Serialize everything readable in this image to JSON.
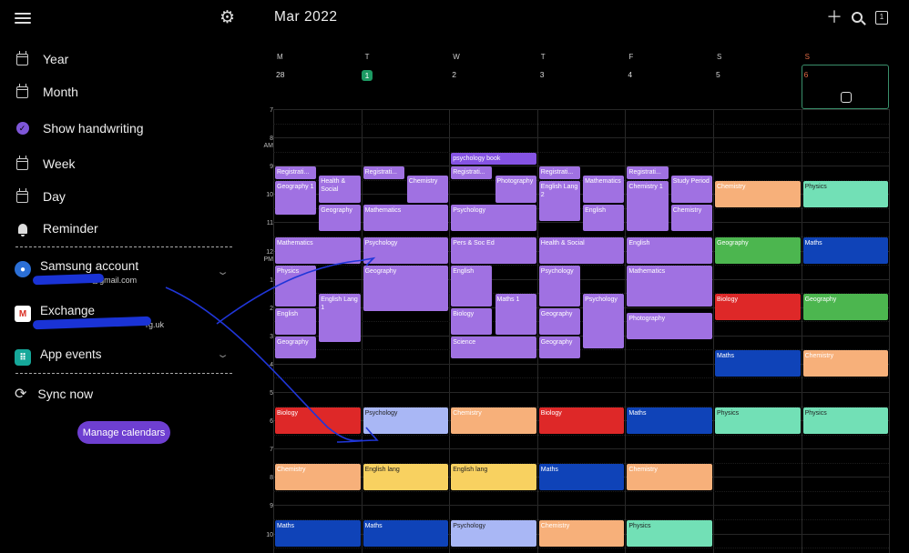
{
  "drawer": {
    "nav": [
      {
        "label": "Year"
      },
      {
        "label": "Month"
      },
      {
        "label": "Show handwriting"
      },
      {
        "label": "Week"
      },
      {
        "label": "Day"
      },
      {
        "label": "Reminder"
      }
    ],
    "accounts": [
      {
        "name": "Samsung account",
        "sub": "@gmail.com"
      },
      {
        "name": "Exchange",
        "sub": "rg.uk"
      },
      {
        "name": "App events",
        "sub": ""
      }
    ],
    "sync_label": "Sync now",
    "manage_label": "Manage calendars"
  },
  "header": {
    "title": "Mar 2022",
    "today_icon_text": "1"
  },
  "days": [
    {
      "letter": "M",
      "num": "28"
    },
    {
      "letter": "T",
      "num": "1"
    },
    {
      "letter": "W",
      "num": "2"
    },
    {
      "letter": "T",
      "num": "3"
    },
    {
      "letter": "F",
      "num": "4"
    },
    {
      "letter": "S",
      "num": "5"
    },
    {
      "letter": "S",
      "num": "6"
    }
  ],
  "hours": [
    {
      "h": "7",
      "sub": ""
    },
    {
      "h": "8",
      "sub": "AM"
    },
    {
      "h": "9",
      "sub": ""
    },
    {
      "h": "10",
      "sub": ""
    },
    {
      "h": "11",
      "sub": ""
    },
    {
      "h": "12",
      "sub": "PM"
    },
    {
      "h": "1",
      "sub": ""
    },
    {
      "h": "2",
      "sub": ""
    },
    {
      "h": "3",
      "sub": ""
    },
    {
      "h": "4",
      "sub": ""
    },
    {
      "h": "5",
      "sub": ""
    },
    {
      "h": "6",
      "sub": ""
    },
    {
      "h": "7",
      "sub": ""
    },
    {
      "h": "8",
      "sub": ""
    },
    {
      "h": "9",
      "sub": ""
    },
    {
      "h": "10",
      "sub": ""
    }
  ],
  "events": [
    {
      "d": 2,
      "s": 8.5,
      "e": 9.0,
      "col": "c-pbtn",
      "t": "psychology book"
    },
    {
      "d": 0,
      "s": 9.0,
      "e": 9.5,
      "w": 0.5,
      "o": 0,
      "col": "c-purple",
      "t": "Registrati..."
    },
    {
      "d": 0,
      "s": 9.5,
      "e": 10.75,
      "w": 0.5,
      "o": 0,
      "col": "c-purple",
      "t": "Geography 1"
    },
    {
      "d": 0,
      "s": 9.33,
      "e": 10.33,
      "w": 0.5,
      "o": 0.5,
      "col": "c-purple",
      "t": "Health & Social"
    },
    {
      "d": 0,
      "s": 10.33,
      "e": 11.33,
      "w": 0.5,
      "o": 0.5,
      "col": "c-purple",
      "t": "Geography"
    },
    {
      "d": 0,
      "s": 11.5,
      "e": 12.5,
      "col": "c-purple",
      "t": "Mathematics"
    },
    {
      "d": 0,
      "s": 12.5,
      "e": 14.0,
      "w": 0.5,
      "o": 0,
      "col": "c-purple",
      "t": "Physics"
    },
    {
      "d": 0,
      "s": 13.5,
      "e": 15.25,
      "w": 0.5,
      "o": 0.5,
      "col": "c-purple",
      "t": "English Lang 1"
    },
    {
      "d": 0,
      "s": 14.0,
      "e": 15.0,
      "w": 0.5,
      "o": 0,
      "col": "c-purple",
      "t": "English"
    },
    {
      "d": 0,
      "s": 15.0,
      "e": 15.83,
      "w": 0.5,
      "o": 0,
      "col": "c-purple",
      "t": "Geography"
    },
    {
      "d": 0,
      "s": 17.5,
      "e": 18.5,
      "col": "c-red",
      "t": "Biology"
    },
    {
      "d": 0,
      "s": 19.5,
      "e": 20.5,
      "col": "c-orange",
      "t": "Chemistry"
    },
    {
      "d": 0,
      "s": 21.5,
      "e": 22.5,
      "col": "c-blue",
      "t": "Maths"
    },
    {
      "d": 1,
      "s": 9.0,
      "e": 9.5,
      "w": 0.5,
      "o": 0,
      "col": "c-purple",
      "t": "Registrati..."
    },
    {
      "d": 1,
      "s": 9.33,
      "e": 10.33,
      "w": 0.5,
      "o": 0.5,
      "col": "c-purple",
      "t": "Chemistry"
    },
    {
      "d": 1,
      "s": 10.33,
      "e": 11.33,
      "col": "c-purple",
      "t": "Mathematics"
    },
    {
      "d": 1,
      "s": 11.5,
      "e": 12.5,
      "col": "c-purple",
      "t": "Psychology"
    },
    {
      "d": 1,
      "s": 12.5,
      "e": 14.17,
      "col": "c-purple",
      "t": "Geography"
    },
    {
      "d": 1,
      "s": 17.5,
      "e": 18.5,
      "col": "c-lav",
      "t": "Psychology"
    },
    {
      "d": 1,
      "s": 19.5,
      "e": 20.5,
      "col": "c-yellow",
      "t": "English lang"
    },
    {
      "d": 1,
      "s": 21.5,
      "e": 22.5,
      "col": "c-blue",
      "t": "Maths"
    },
    {
      "d": 2,
      "s": 9.0,
      "e": 9.5,
      "w": 0.5,
      "o": 0,
      "col": "c-purple",
      "t": "Registrati..."
    },
    {
      "d": 2,
      "s": 9.33,
      "e": 10.33,
      "w": 0.5,
      "o": 0.5,
      "col": "c-purple",
      "t": "Photography"
    },
    {
      "d": 2,
      "s": 10.33,
      "e": 11.33,
      "col": "c-purple",
      "t": "Psychology"
    },
    {
      "d": 2,
      "s": 11.5,
      "e": 12.5,
      "col": "c-purple",
      "t": "Pers & Soc Ed"
    },
    {
      "d": 2,
      "s": 12.5,
      "e": 14.0,
      "w": 0.5,
      "o": 0,
      "col": "c-purple",
      "t": "English"
    },
    {
      "d": 2,
      "s": 13.5,
      "e": 15.0,
      "w": 0.5,
      "o": 0.5,
      "col": "c-purple",
      "t": "Maths 1"
    },
    {
      "d": 2,
      "s": 14.0,
      "e": 15.0,
      "w": 0.5,
      "o": 0,
      "col": "c-purple",
      "t": "Biology"
    },
    {
      "d": 2,
      "s": 15.0,
      "e": 15.83,
      "col": "c-purple",
      "t": "Science"
    },
    {
      "d": 2,
      "s": 17.5,
      "e": 18.5,
      "col": "c-orange",
      "t": "Chemistry"
    },
    {
      "d": 2,
      "s": 19.5,
      "e": 20.5,
      "col": "c-yellow",
      "t": "English lang"
    },
    {
      "d": 2,
      "s": 21.5,
      "e": 22.5,
      "col": "c-lav",
      "t": "Psychology"
    },
    {
      "d": 3,
      "s": 9.0,
      "e": 9.5,
      "w": 0.5,
      "o": 0,
      "col": "c-purple",
      "t": "Registrati..."
    },
    {
      "d": 3,
      "s": 9.5,
      "e": 11.0,
      "w": 0.5,
      "o": 0,
      "col": "c-purple",
      "t": "English Lang 2"
    },
    {
      "d": 3,
      "s": 9.33,
      "e": 10.33,
      "w": 0.5,
      "o": 0.5,
      "col": "c-purple",
      "t": "Mathematics"
    },
    {
      "d": 3,
      "s": 10.33,
      "e": 11.33,
      "w": 0.5,
      "o": 0.5,
      "col": "c-purple",
      "t": "English"
    },
    {
      "d": 3,
      "s": 11.5,
      "e": 12.5,
      "col": "c-purple",
      "t": "Health & Social"
    },
    {
      "d": 3,
      "s": 12.5,
      "e": 14.0,
      "w": 0.5,
      "o": 0,
      "col": "c-purple",
      "t": "Psychology"
    },
    {
      "d": 3,
      "s": 13.5,
      "e": 15.5,
      "w": 0.5,
      "o": 0.5,
      "col": "c-purple",
      "t": "Psychology"
    },
    {
      "d": 3,
      "s": 14.0,
      "e": 15.0,
      "w": 0.5,
      "o": 0,
      "col": "c-purple",
      "t": "Geography"
    },
    {
      "d": 3,
      "s": 15.0,
      "e": 15.83,
      "w": 0.5,
      "o": 0,
      "col": "c-purple",
      "t": "Geography"
    },
    {
      "d": 3,
      "s": 17.5,
      "e": 18.5,
      "col": "c-red",
      "t": "Biology"
    },
    {
      "d": 3,
      "s": 19.5,
      "e": 20.5,
      "col": "c-blue",
      "t": "Maths"
    },
    {
      "d": 3,
      "s": 21.5,
      "e": 22.5,
      "col": "c-orange",
      "t": "Chemistry"
    },
    {
      "d": 4,
      "s": 9.0,
      "e": 9.5,
      "w": 0.5,
      "o": 0,
      "col": "c-purple",
      "t": "Registrati..."
    },
    {
      "d": 4,
      "s": 9.5,
      "e": 11.33,
      "w": 0.5,
      "o": 0,
      "col": "c-purple",
      "t": "Chemistry 1"
    },
    {
      "d": 4,
      "s": 9.33,
      "e": 10.33,
      "w": 0.5,
      "o": 0.5,
      "col": "c-purple",
      "t": "Study Period"
    },
    {
      "d": 4,
      "s": 10.33,
      "e": 11.33,
      "w": 0.5,
      "o": 0.5,
      "col": "c-purple",
      "t": "Chemistry"
    },
    {
      "d": 4,
      "s": 11.5,
      "e": 12.5,
      "col": "c-purple",
      "t": "English"
    },
    {
      "d": 4,
      "s": 12.5,
      "e": 14.0,
      "col": "c-purple",
      "t": "Mathematics"
    },
    {
      "d": 4,
      "s": 14.17,
      "e": 15.17,
      "col": "c-purple",
      "t": "Photography"
    },
    {
      "d": 4,
      "s": 17.5,
      "e": 18.5,
      "col": "c-blue",
      "t": "Maths"
    },
    {
      "d": 4,
      "s": 19.5,
      "e": 20.5,
      "col": "c-orange",
      "t": "Chemistry"
    },
    {
      "d": 4,
      "s": 21.5,
      "e": 22.5,
      "col": "c-mint",
      "t": "Physics"
    },
    {
      "d": 5,
      "s": 9.5,
      "e": 10.5,
      "col": "c-orange",
      "t": "Chemistry"
    },
    {
      "d": 5,
      "s": 11.5,
      "e": 12.5,
      "col": "c-green",
      "t": "Geography"
    },
    {
      "d": 5,
      "s": 13.5,
      "e": 14.5,
      "col": "c-red",
      "t": "Biology"
    },
    {
      "d": 5,
      "s": 15.5,
      "e": 16.5,
      "col": "c-blue",
      "t": "Maths"
    },
    {
      "d": 5,
      "s": 17.5,
      "e": 18.5,
      "col": "c-mint",
      "t": "Physics"
    },
    {
      "d": 6,
      "s": 9.5,
      "e": 10.5,
      "col": "c-mint",
      "t": "Physics"
    },
    {
      "d": 6,
      "s": 11.5,
      "e": 12.5,
      "col": "c-blue",
      "t": "Maths"
    },
    {
      "d": 6,
      "s": 13.5,
      "e": 14.5,
      "col": "c-green",
      "t": "Geography"
    },
    {
      "d": 6,
      "s": 15.5,
      "e": 16.5,
      "col": "c-orange",
      "t": "Chemistry"
    },
    {
      "d": 6,
      "s": 17.5,
      "e": 18.5,
      "col": "c-mint",
      "t": "Physics"
    }
  ]
}
